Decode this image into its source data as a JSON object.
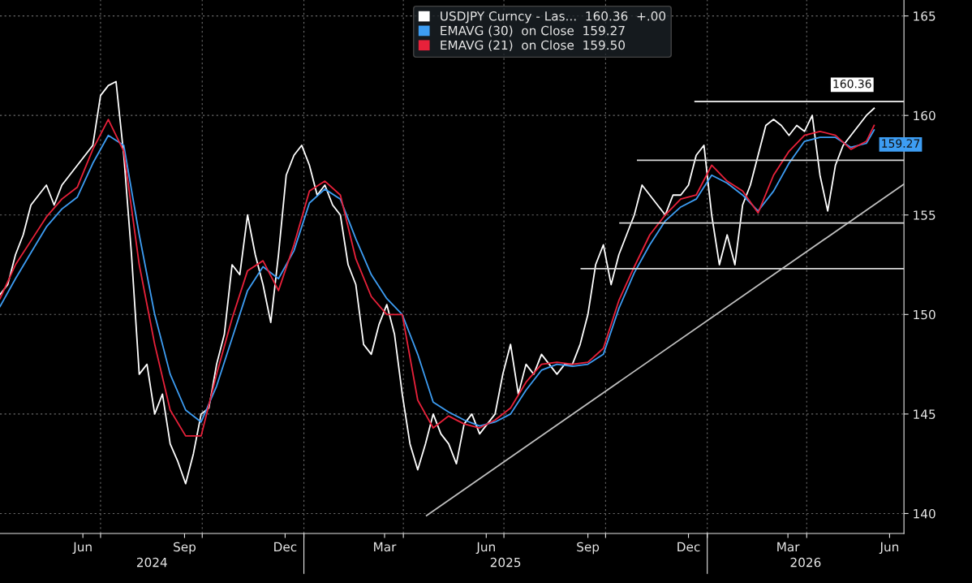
{
  "chart_data": {
    "type": "line",
    "xlim": [
      "2024-04-01",
      "2026-06-28"
    ],
    "ylim": [
      139.0,
      165.8
    ],
    "yticks": [
      140,
      145,
      150,
      155,
      160,
      165
    ],
    "xticks": [
      {
        "value": "2024-06-15",
        "label": "Jun"
      },
      {
        "value": "2024-09-15",
        "label": "Sep"
      },
      {
        "value": "2024-12-15",
        "label": "Dec"
      },
      {
        "value": "2025-03-15",
        "label": "Mar"
      },
      {
        "value": "2025-06-15",
        "label": "Jun"
      },
      {
        "value": "2025-09-15",
        "label": "Sep"
      },
      {
        "value": "2025-12-15",
        "label": "Dec"
      },
      {
        "value": "2026-03-15",
        "label": "Mar"
      },
      {
        "value": "2026-06-15",
        "label": "Jun"
      },
      {
        "value": "2024-07-01",
        "label": null
      },
      {
        "value": "2024-10-01",
        "label": null
      },
      {
        "value": "2025-01-01",
        "label": null
      },
      {
        "value": "2025-04-01",
        "label": null
      },
      {
        "value": "2025-07-01",
        "label": null
      },
      {
        "value": "2025-10-01",
        "label": null
      },
      {
        "value": "2026-01-01",
        "label": null
      },
      {
        "value": "2026-04-01",
        "label": null
      }
    ],
    "grid": true,
    "legend": "top",
    "marker": "none",
    "line_style": "solid",
    "annotations": [
      "2024",
      "2025",
      "2026"
    ],
    "series": [
      {
        "name": "USDJPY Curncy - Las...  160.36  +.00",
        "color": "#ffffff",
        "x": [
          "2024-04-01",
          "2024-04-08",
          "2024-04-15",
          "2024-04-22",
          "2024-04-29",
          "2024-05-06",
          "2024-05-13",
          "2024-05-20",
          "2024-05-27",
          "2024-06-03",
          "2024-06-10",
          "2024-06-17",
          "2024-06-24",
          "2024-07-01",
          "2024-07-08",
          "2024-07-15",
          "2024-07-22",
          "2024-07-29",
          "2024-08-05",
          "2024-08-12",
          "2024-08-19",
          "2024-08-26",
          "2024-09-02",
          "2024-09-09",
          "2024-09-16",
          "2024-09-23",
          "2024-09-30",
          "2024-10-07",
          "2024-10-14",
          "2024-10-21",
          "2024-10-28",
          "2024-11-04",
          "2024-11-11",
          "2024-11-18",
          "2024-11-25",
          "2024-12-02",
          "2024-12-09",
          "2024-12-16",
          "2024-12-23",
          "2024-12-30",
          "2025-01-06",
          "2025-01-13",
          "2025-01-20",
          "2025-01-27",
          "2025-02-03",
          "2025-02-10",
          "2025-02-17",
          "2025-02-24",
          "2025-03-03",
          "2025-03-10",
          "2025-03-17",
          "2025-03-24",
          "2025-03-31",
          "2025-04-07",
          "2025-04-14",
          "2025-04-21",
          "2025-04-28",
          "2025-05-05",
          "2025-05-12",
          "2025-05-19",
          "2025-05-26",
          "2025-06-02",
          "2025-06-09",
          "2025-06-16",
          "2025-06-23",
          "2025-06-30",
          "2025-07-07",
          "2025-07-14",
          "2025-07-21",
          "2025-07-28",
          "2025-08-04",
          "2025-08-11",
          "2025-08-18",
          "2025-08-25",
          "2025-09-01",
          "2025-09-08",
          "2025-09-15",
          "2025-09-22",
          "2025-09-29",
          "2025-10-06",
          "2025-10-13",
          "2025-10-20",
          "2025-10-27",
          "2025-11-03",
          "2025-11-10",
          "2025-11-17",
          "2025-11-24",
          "2025-12-01",
          "2025-12-08",
          "2025-12-15",
          "2025-12-22",
          "2025-12-29",
          "2026-01-05",
          "2026-01-12",
          "2026-01-19",
          "2026-01-26",
          "2026-02-02",
          "2026-02-09",
          "2026-02-16",
          "2026-02-23",
          "2026-03-02",
          "2026-03-09",
          "2026-03-16",
          "2026-03-23",
          "2026-03-30",
          "2026-04-06",
          "2026-04-13",
          "2026-04-20",
          "2026-04-27",
          "2026-05-04",
          "2026-05-11",
          "2026-05-18",
          "2026-05-25",
          "2026-06-01"
        ],
        "values": [
          151.0,
          151.5,
          153.0,
          154.0,
          155.5,
          156.0,
          156.5,
          155.5,
          156.5,
          157.0,
          157.5,
          158.0,
          158.5,
          161.0,
          161.5,
          161.7,
          158.0,
          153.0,
          147.0,
          147.5,
          145.0,
          146.0,
          143.5,
          142.6,
          141.5,
          143.0,
          145.0,
          145.3,
          147.5,
          149.0,
          152.5,
          152.0,
          155.0,
          153.0,
          151.5,
          149.6,
          153.0,
          157.0,
          158.0,
          158.5,
          157.5,
          156.0,
          156.5,
          155.5,
          155.0,
          152.5,
          151.5,
          148.5,
          148.0,
          149.5,
          150.5,
          149.0,
          146.0,
          143.5,
          142.2,
          143.5,
          145.0,
          144.0,
          143.5,
          142.5,
          144.5,
          145.0,
          144.0,
          144.5,
          145.0,
          147.0,
          148.5,
          146.0,
          147.5,
          147.0,
          148.0,
          147.5,
          147.0,
          147.5,
          147.5,
          148.5,
          150.0,
          152.5,
          153.5,
          151.5,
          153.0,
          154.0,
          155.0,
          156.5,
          156.0,
          155.5,
          155.0,
          156.0,
          156.0,
          156.5,
          158.0,
          158.5,
          155.0,
          152.5,
          154.0,
          152.5,
          155.5,
          156.5,
          158.0,
          159.5,
          159.8,
          159.5,
          159.0,
          159.5,
          159.2,
          160.0,
          157.0,
          155.2,
          157.5,
          158.5,
          159.0,
          159.5,
          160.0,
          160.36
        ],
        "value_labels": [
          null,
          null,
          null,
          null,
          null,
          null,
          null,
          null,
          null,
          null,
          null,
          null,
          null,
          null,
          null,
          null,
          null,
          null,
          null,
          null,
          null,
          null,
          null,
          null,
          null,
          null,
          null,
          null,
          null,
          null,
          null,
          null,
          null,
          null,
          null,
          null,
          null,
          null,
          null,
          null,
          null,
          null,
          null,
          null,
          null,
          null,
          null,
          null,
          null,
          null,
          null,
          null,
          null,
          null,
          null,
          null,
          null,
          null,
          null,
          null,
          null,
          null,
          null,
          null,
          null,
          null,
          null,
          null,
          null,
          null,
          null,
          null,
          null,
          null,
          null,
          null,
          null,
          null,
          null,
          null,
          null,
          null,
          null,
          null,
          null,
          null,
          null,
          null,
          null,
          null,
          null,
          null,
          null,
          null,
          null,
          null,
          null,
          null,
          null,
          null,
          null,
          null,
          null,
          null,
          null,
          null,
          null,
          null,
          null,
          null,
          null,
          null,
          null,
          "160.36"
        ]
      },
      {
        "name": "EMAVG (30)  on Close  159.27",
        "color": "#3d9df3",
        "x": [
          "2024-04-01",
          "2024-04-15",
          "2024-04-29",
          "2024-05-13",
          "2024-05-27",
          "2024-06-10",
          "2024-06-24",
          "2024-07-08",
          "2024-07-22",
          "2024-08-05",
          "2024-08-19",
          "2024-09-02",
          "2024-09-16",
          "2024-09-30",
          "2024-10-14",
          "2024-10-28",
          "2024-11-11",
          "2024-11-25",
          "2024-12-09",
          "2024-12-23",
          "2025-01-06",
          "2025-01-20",
          "2025-02-03",
          "2025-02-17",
          "2025-03-03",
          "2025-03-17",
          "2025-03-31",
          "2025-04-14",
          "2025-04-28",
          "2025-05-12",
          "2025-05-26",
          "2025-06-09",
          "2025-06-23",
          "2025-07-07",
          "2025-07-21",
          "2025-08-04",
          "2025-08-18",
          "2025-09-01",
          "2025-09-15",
          "2025-09-29",
          "2025-10-13",
          "2025-10-27",
          "2025-11-10",
          "2025-11-24",
          "2025-12-08",
          "2025-12-22",
          "2026-01-05",
          "2026-01-19",
          "2026-02-02",
          "2026-02-16",
          "2026-03-02",
          "2026-03-16",
          "2026-03-30",
          "2026-04-13",
          "2026-04-27",
          "2026-05-11",
          "2026-05-25",
          "2026-06-01"
        ],
        "values": [
          150.4,
          151.8,
          153.1,
          154.4,
          155.3,
          155.9,
          157.6,
          159.0,
          158.5,
          154.0,
          150.0,
          147.0,
          145.2,
          144.6,
          146.4,
          148.8,
          151.2,
          152.4,
          151.8,
          153.2,
          155.6,
          156.3,
          155.8,
          153.8,
          152.0,
          150.8,
          150.0,
          148.0,
          145.6,
          145.1,
          144.7,
          144.4,
          144.6,
          145.0,
          146.2,
          147.2,
          147.5,
          147.4,
          147.5,
          148.0,
          150.3,
          152.1,
          153.5,
          154.7,
          155.4,
          155.8,
          157.0,
          156.6,
          156.0,
          155.2,
          156.2,
          157.6,
          158.7,
          158.9,
          158.9,
          158.4,
          158.6,
          159.27
        ],
        "value_labels": [
          null,
          null,
          null,
          null,
          null,
          null,
          null,
          null,
          null,
          null,
          null,
          null,
          null,
          null,
          null,
          null,
          null,
          null,
          null,
          null,
          null,
          null,
          null,
          null,
          null,
          null,
          null,
          null,
          null,
          null,
          null,
          null,
          null,
          null,
          null,
          null,
          null,
          null,
          null,
          null,
          null,
          null,
          null,
          null,
          null,
          null,
          null,
          null,
          null,
          null,
          null,
          null,
          null,
          null,
          null,
          null,
          null,
          "159.27"
        ]
      },
      {
        "name": "EMAVG (21)  on Close  159.50",
        "color": "#e8213a",
        "x": [
          "2024-04-01",
          "2024-04-15",
          "2024-04-29",
          "2024-05-13",
          "2024-05-27",
          "2024-06-10",
          "2024-06-24",
          "2024-07-08",
          "2024-07-22",
          "2024-08-05",
          "2024-08-19",
          "2024-09-02",
          "2024-09-16",
          "2024-09-30",
          "2024-10-14",
          "2024-10-28",
          "2024-11-11",
          "2024-11-25",
          "2024-12-09",
          "2024-12-23",
          "2025-01-06",
          "2025-01-20",
          "2025-02-03",
          "2025-02-17",
          "2025-03-03",
          "2025-03-17",
          "2025-03-31",
          "2025-04-14",
          "2025-04-28",
          "2025-05-12",
          "2025-05-26",
          "2025-06-09",
          "2025-06-23",
          "2025-07-07",
          "2025-07-21",
          "2025-08-04",
          "2025-08-18",
          "2025-09-01",
          "2025-09-15",
          "2025-09-29",
          "2025-10-13",
          "2025-10-27",
          "2025-11-10",
          "2025-11-24",
          "2025-12-08",
          "2025-12-22",
          "2026-01-05",
          "2026-01-19",
          "2026-02-02",
          "2026-02-16",
          "2026-03-02",
          "2026-03-16",
          "2026-03-30",
          "2026-04-13",
          "2026-04-27",
          "2026-05-11",
          "2026-05-25",
          "2026-06-01"
        ],
        "values": [
          150.8,
          152.5,
          153.7,
          154.9,
          155.8,
          156.4,
          158.3,
          159.8,
          158.2,
          152.5,
          148.5,
          145.2,
          143.9,
          143.9,
          147.0,
          149.8,
          152.2,
          152.7,
          151.2,
          153.5,
          156.2,
          156.7,
          156.0,
          152.8,
          150.9,
          150.0,
          150.0,
          145.7,
          144.3,
          144.9,
          144.5,
          144.3,
          144.7,
          145.3,
          146.6,
          147.5,
          147.6,
          147.5,
          147.6,
          148.3,
          150.7,
          152.4,
          154.0,
          155.0,
          155.8,
          156.0,
          157.5,
          156.7,
          156.2,
          155.1,
          157.0,
          158.2,
          159.0,
          159.2,
          159.0,
          158.3,
          158.7,
          159.5
        ]
      },
      {
        "color": "#d9d9d9",
        "x": [
          "2025-12-21",
          "2026-06-28"
        ],
        "values": [
          160.7,
          160.7
        ]
      },
      {
        "color": "#d9d9d9",
        "x": [
          "2025-10-30",
          "2026-06-28"
        ],
        "values": [
          157.75,
          157.75
        ]
      },
      {
        "color": "#d9d9d9",
        "x": [
          "2025-10-14",
          "2026-06-28"
        ],
        "values": [
          154.6,
          154.6
        ]
      },
      {
        "color": "#d9d9d9",
        "x": [
          "2025-09-09",
          "2026-06-28"
        ],
        "values": [
          152.3,
          152.3
        ]
      },
      {
        "color": "#bfbfbf",
        "x": [
          "2025-04-22",
          "2026-06-28"
        ],
        "values": [
          139.9,
          156.55
        ]
      }
    ]
  }
}
